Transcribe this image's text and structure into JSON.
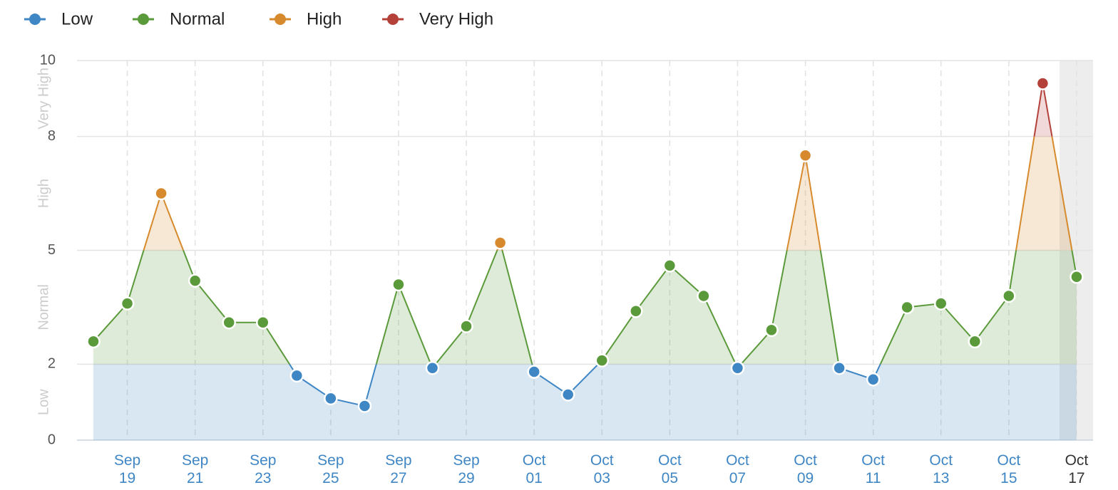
{
  "chart_data": {
    "type": "line",
    "categories": [
      null,
      "Sep 19",
      null,
      "Sep 21",
      null,
      "Sep 23",
      null,
      "Sep 25",
      null,
      "Sep 27",
      null,
      "Sep 29",
      null,
      "Oct 01",
      null,
      "Oct 03",
      null,
      "Oct 05",
      null,
      "Oct 07",
      null,
      "Oct 09",
      null,
      "Oct 11",
      null,
      "Oct 13",
      null,
      "Oct 15",
      null,
      "Oct 17"
    ],
    "values": [
      2.6,
      3.6,
      6.5,
      4.2,
      3.1,
      3.1,
      1.7,
      1.1,
      0.9,
      4.1,
      1.9,
      3.0,
      5.2,
      1.8,
      1.2,
      2.1,
      3.4,
      4.6,
      3.8,
      1.9,
      2.9,
      7.5,
      1.9,
      1.6,
      3.5,
      3.6,
      2.6,
      3.8,
      9.4,
      4.3
    ],
    "levels": [
      {
        "name": "Low",
        "from": 0,
        "to": 2,
        "color": "#3f86c4"
      },
      {
        "name": "Normal",
        "from": 2,
        "to": 5,
        "color": "#5b9a3b"
      },
      {
        "name": "High",
        "from": 5,
        "to": 8,
        "color": "#d78a2d"
      },
      {
        "name": "Very High",
        "from": 8,
        "to": 10,
        "color": "#b3413a"
      }
    ],
    "ylim": [
      0,
      10
    ],
    "yticks": [
      0,
      2,
      5,
      8,
      10
    ],
    "grid": true
  }
}
